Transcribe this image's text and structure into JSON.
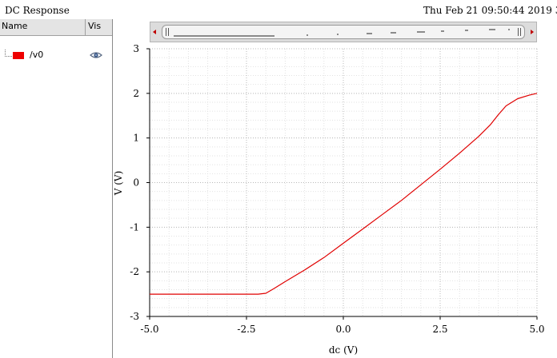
{
  "window": {
    "title": "DC Response",
    "timestamp": "Thu Feb 21 09:50:44 2019  3"
  },
  "legend_panel": {
    "col_name": "Name",
    "col_vis": "Vis",
    "signals": [
      {
        "label": "/v0",
        "color": "#ee0000",
        "visible_icon": "eye-icon"
      }
    ]
  },
  "toolbar": {
    "scroll_left_icon": "arrow-left-icon",
    "scroll_right_icon": "arrow-right-icon"
  },
  "chart_data": {
    "type": "line",
    "xlabel": "dc (V)",
    "ylabel": "V (V)",
    "xlim": [
      -5.0,
      5.0
    ],
    "ylim": [
      -3,
      3
    ],
    "xticks": [
      "-5.0",
      "-2.5",
      "0.0",
      "2.5",
      "5.0"
    ],
    "yticks": [
      "3",
      "2",
      "1",
      "0",
      "-1",
      "-2",
      "-3"
    ],
    "grid": true,
    "series": [
      {
        "name": "/v0",
        "color": "#e00000",
        "x": [
          -5.0,
          -4.0,
          -3.0,
          -2.5,
          -2.2,
          -2.0,
          -1.8,
          -1.5,
          -1.0,
          -0.5,
          0.0,
          0.5,
          1.0,
          1.5,
          2.0,
          2.5,
          3.0,
          3.5,
          3.8,
          4.0,
          4.2,
          4.5,
          4.8,
          5.0
        ],
        "y": [
          -2.5,
          -2.5,
          -2.5,
          -2.5,
          -2.5,
          -2.48,
          -2.38,
          -2.22,
          -1.96,
          -1.68,
          -1.36,
          -1.04,
          -0.72,
          -0.4,
          -0.05,
          0.3,
          0.66,
          1.04,
          1.3,
          1.52,
          1.72,
          1.88,
          1.96,
          2.0
        ]
      }
    ]
  }
}
